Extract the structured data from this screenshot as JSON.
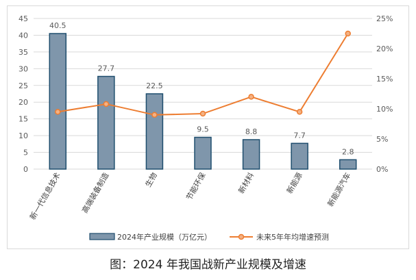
{
  "caption": "图：2024 年我国战新产业规模及增速",
  "colors": {
    "bar_fill": "#7f96ab",
    "bar_stroke": "#1f4e6e",
    "line": "#ed7d31",
    "grid": "#d9d9d9"
  },
  "chart_data": {
    "type": "bar",
    "categories": [
      "新一代信息技术",
      "高端装备制造",
      "生物",
      "节能环保",
      "新材料",
      "新能源",
      "新能源汽车"
    ],
    "series": [
      {
        "name": "2024年产业规模（万亿元）",
        "type": "bar",
        "axis": "left",
        "values": [
          40.5,
          27.7,
          22.5,
          9.5,
          8.8,
          7.7,
          2.8
        ],
        "labels": [
          "40.5",
          "27.7",
          "22.5",
          "9.5",
          "8.8",
          "7.7",
          "2.8"
        ]
      },
      {
        "name": "未来5年年均增速预测",
        "type": "line",
        "axis": "right",
        "values": [
          9.5,
          10.8,
          9.0,
          9.2,
          12.0,
          9.5,
          22.5
        ]
      }
    ],
    "y_left": {
      "min": 0,
      "max": 45,
      "ticks": [
        "0",
        "5",
        "10",
        "15",
        "20",
        "25",
        "30",
        "35",
        "40",
        "45"
      ]
    },
    "y_right": {
      "min": 0,
      "max": 25,
      "ticks": [
        "0%",
        "5%",
        "10%",
        "15%",
        "20%",
        "25%"
      ]
    },
    "grid": true,
    "legend_position": "bottom"
  }
}
